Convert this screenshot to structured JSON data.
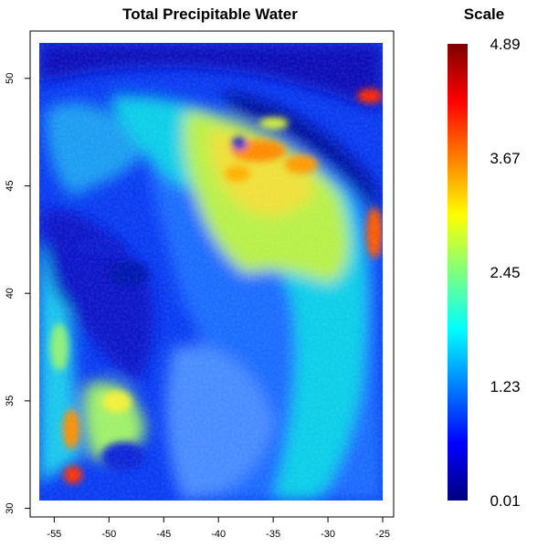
{
  "chart_data": [
    {
      "type": "heatmap",
      "title": "Total Precipitable Water",
      "xlabel": "",
      "ylabel": "",
      "xlim": [
        -57.2,
        -24.0
      ],
      "ylim": [
        29.6,
        52.2
      ],
      "data_extent": {
        "lon": [
          -57.0,
          -24.6
        ],
        "lat": [
          29.9,
          51.3
        ]
      },
      "x_ticks": [
        {
          "value": -55,
          "label": "-55"
        },
        {
          "value": -50,
          "label": "-50"
        },
        {
          "value": -45,
          "label": "-45"
        },
        {
          "value": -40,
          "label": "-40"
        },
        {
          "value": -35,
          "label": "-35"
        },
        {
          "value": -30,
          "label": "-30"
        },
        {
          "value": -25,
          "label": "-25"
        }
      ],
      "y_ticks": [
        {
          "value": 30,
          "label": "30"
        },
        {
          "value": 35,
          "label": "35"
        },
        {
          "value": 40,
          "label": "40"
        },
        {
          "value": 45,
          "label": "45"
        },
        {
          "value": 50,
          "label": "50"
        }
      ],
      "grid": false
    },
    {
      "type": "colorbar",
      "title": "Scale",
      "range": [
        0.01,
        4.89
      ],
      "ticks": [
        {
          "value": 4.89,
          "label": "4.89"
        },
        {
          "value": 3.67,
          "label": "3.67"
        },
        {
          "value": 2.45,
          "label": "2.45"
        },
        {
          "value": 1.23,
          "label": "1.23"
        },
        {
          "value": 0.01,
          "label": "0.01"
        }
      ],
      "colormap": [
        "#00007f",
        "#0000ff",
        "#007fff",
        "#00ffff",
        "#7fff7f",
        "#ffff00",
        "#ff7f00",
        "#ff0000",
        "#7f0000"
      ]
    }
  ]
}
